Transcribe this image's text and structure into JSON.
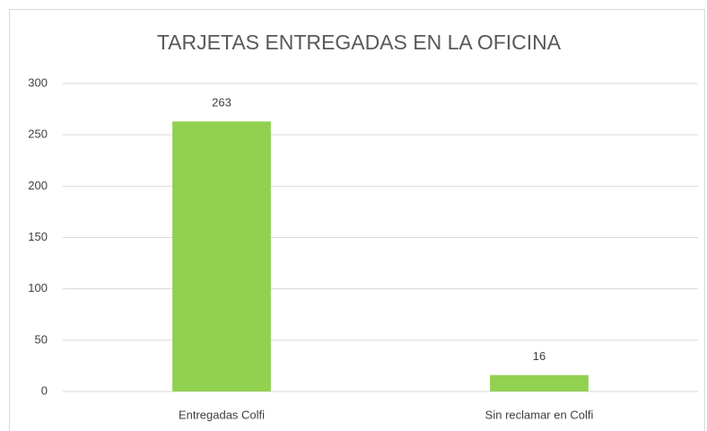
{
  "chart_data": {
    "type": "bar",
    "title": "TARJETAS ENTREGADAS EN LA OFICINA",
    "categories": [
      "Entregadas Colfi",
      "Sin reclamar en Colfi"
    ],
    "values": [
      263,
      16
    ],
    "color": "#92d050",
    "ylim": [
      0,
      300
    ],
    "yticks": [
      0,
      50,
      100,
      150,
      200,
      250,
      300
    ],
    "grid": true,
    "data_labels": true
  }
}
